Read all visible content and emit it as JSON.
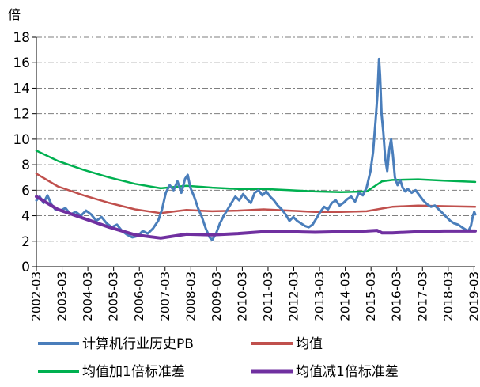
{
  "chart_data": {
    "type": "line",
    "y_unit_label": "倍",
    "ylim": [
      0,
      18
    ],
    "y_ticks": [
      0,
      2,
      4,
      6,
      8,
      10,
      12,
      14,
      16,
      18
    ],
    "x_tick_labels": [
      "2002-03",
      "2003-03",
      "2004-03",
      "2005-03",
      "2006-03",
      "2007-03",
      "2008-03",
      "2009-03",
      "2010-03",
      "2011-03",
      "2012-03",
      "2013-03",
      "2014-03",
      "2015-03",
      "2016-03",
      "2017-03",
      "2018-03",
      "2019-03"
    ],
    "grid": true,
    "legend_position": "bottom",
    "series": [
      {
        "name": "计算机行业历史PB",
        "color": "#4a7ebb",
        "points": [
          [
            2002.17,
            5.2
          ],
          [
            2002.3,
            5.5
          ],
          [
            2002.45,
            5.0
          ],
          [
            2002.6,
            5.6
          ],
          [
            2002.75,
            4.9
          ],
          [
            2002.9,
            4.5
          ],
          [
            2003.1,
            4.4
          ],
          [
            2003.3,
            4.6
          ],
          [
            2003.5,
            4.1
          ],
          [
            2003.7,
            4.3
          ],
          [
            2003.9,
            4.0
          ],
          [
            2004.1,
            4.4
          ],
          [
            2004.3,
            4.1
          ],
          [
            2004.5,
            3.6
          ],
          [
            2004.7,
            3.9
          ],
          [
            2004.9,
            3.4
          ],
          [
            2005.1,
            3.1
          ],
          [
            2005.3,
            3.3
          ],
          [
            2005.5,
            2.8
          ],
          [
            2005.7,
            2.5
          ],
          [
            2005.9,
            2.3
          ],
          [
            2006.1,
            2.4
          ],
          [
            2006.3,
            2.8
          ],
          [
            2006.5,
            2.6
          ],
          [
            2006.7,
            3.0
          ],
          [
            2006.9,
            3.6
          ],
          [
            2007.05,
            4.5
          ],
          [
            2007.2,
            5.8
          ],
          [
            2007.35,
            6.4
          ],
          [
            2007.5,
            6.0
          ],
          [
            2007.65,
            6.7
          ],
          [
            2007.8,
            5.8
          ],
          [
            2007.95,
            6.9
          ],
          [
            2008.05,
            7.2
          ],
          [
            2008.15,
            6.2
          ],
          [
            2008.3,
            5.5
          ],
          [
            2008.45,
            4.6
          ],
          [
            2008.6,
            3.9
          ],
          [
            2008.75,
            3.0
          ],
          [
            2008.9,
            2.3
          ],
          [
            2009.0,
            2.1
          ],
          [
            2009.15,
            2.6
          ],
          [
            2009.3,
            3.4
          ],
          [
            2009.45,
            4.0
          ],
          [
            2009.6,
            4.5
          ],
          [
            2009.75,
            5.0
          ],
          [
            2009.9,
            5.5
          ],
          [
            2010.05,
            5.2
          ],
          [
            2010.2,
            5.7
          ],
          [
            2010.35,
            5.3
          ],
          [
            2010.5,
            5.0
          ],
          [
            2010.65,
            5.8
          ],
          [
            2010.8,
            6.0
          ],
          [
            2010.95,
            5.6
          ],
          [
            2011.1,
            5.9
          ],
          [
            2011.25,
            5.5
          ],
          [
            2011.4,
            5.2
          ],
          [
            2011.55,
            4.8
          ],
          [
            2011.7,
            4.5
          ],
          [
            2011.85,
            4.1
          ],
          [
            2012.0,
            3.6
          ],
          [
            2012.15,
            3.9
          ],
          [
            2012.3,
            3.6
          ],
          [
            2012.45,
            3.4
          ],
          [
            2012.6,
            3.2
          ],
          [
            2012.75,
            3.1
          ],
          [
            2012.9,
            3.3
          ],
          [
            2013.05,
            3.8
          ],
          [
            2013.2,
            4.3
          ],
          [
            2013.35,
            4.7
          ],
          [
            2013.5,
            4.5
          ],
          [
            2013.65,
            5.0
          ],
          [
            2013.8,
            5.2
          ],
          [
            2013.95,
            4.8
          ],
          [
            2014.1,
            5.0
          ],
          [
            2014.25,
            5.3
          ],
          [
            2014.4,
            5.5
          ],
          [
            2014.55,
            5.1
          ],
          [
            2014.7,
            5.8
          ],
          [
            2014.85,
            5.6
          ],
          [
            2015.0,
            6.2
          ],
          [
            2015.15,
            7.5
          ],
          [
            2015.25,
            9.0
          ],
          [
            2015.35,
            11.5
          ],
          [
            2015.42,
            13.5
          ],
          [
            2015.48,
            16.3
          ],
          [
            2015.52,
            15.0
          ],
          [
            2015.58,
            12.0
          ],
          [
            2015.65,
            10.5
          ],
          [
            2015.72,
            8.5
          ],
          [
            2015.8,
            7.5
          ],
          [
            2015.88,
            9.2
          ],
          [
            2015.95,
            10.0
          ],
          [
            2016.02,
            8.8
          ],
          [
            2016.1,
            7.0
          ],
          [
            2016.2,
            6.4
          ],
          [
            2016.3,
            6.8
          ],
          [
            2016.4,
            6.2
          ],
          [
            2016.5,
            5.9
          ],
          [
            2016.6,
            6.1
          ],
          [
            2016.75,
            5.8
          ],
          [
            2016.9,
            6.0
          ],
          [
            2017.05,
            5.6
          ],
          [
            2017.2,
            5.2
          ],
          [
            2017.35,
            4.9
          ],
          [
            2017.5,
            4.7
          ],
          [
            2017.65,
            4.8
          ],
          [
            2017.8,
            4.5
          ],
          [
            2017.95,
            4.2
          ],
          [
            2018.1,
            3.9
          ],
          [
            2018.25,
            3.6
          ],
          [
            2018.4,
            3.4
          ],
          [
            2018.55,
            3.3
          ],
          [
            2018.7,
            3.1
          ],
          [
            2018.85,
            2.9
          ],
          [
            2018.95,
            2.8
          ],
          [
            2019.05,
            3.2
          ],
          [
            2019.12,
            3.9
          ],
          [
            2019.18,
            4.3
          ],
          [
            2019.22,
            4.1
          ]
        ]
      },
      {
        "name": "均值",
        "color": "#c0504d",
        "points": [
          [
            2002.17,
            7.3
          ],
          [
            2003.0,
            6.3
          ],
          [
            2004.0,
            5.6
          ],
          [
            2005.0,
            5.0
          ],
          [
            2006.0,
            4.5
          ],
          [
            2007.0,
            4.2
          ],
          [
            2008.0,
            4.45
          ],
          [
            2009.0,
            4.35
          ],
          [
            2010.0,
            4.4
          ],
          [
            2011.0,
            4.5
          ],
          [
            2012.0,
            4.4
          ],
          [
            2013.0,
            4.3
          ],
          [
            2014.0,
            4.3
          ],
          [
            2015.0,
            4.35
          ],
          [
            2015.7,
            4.6
          ],
          [
            2016.0,
            4.7
          ],
          [
            2017.0,
            4.8
          ],
          [
            2018.0,
            4.75
          ],
          [
            2019.22,
            4.7
          ]
        ]
      },
      {
        "name": "均值加1倍标准差",
        "color": "#00b050",
        "points": [
          [
            2002.17,
            9.1
          ],
          [
            2003.0,
            8.3
          ],
          [
            2004.0,
            7.6
          ],
          [
            2005.0,
            7.0
          ],
          [
            2006.0,
            6.5
          ],
          [
            2007.0,
            6.15
          ],
          [
            2008.0,
            6.35
          ],
          [
            2009.0,
            6.2
          ],
          [
            2010.0,
            6.1
          ],
          [
            2011.0,
            6.1
          ],
          [
            2012.0,
            6.0
          ],
          [
            2013.0,
            5.9
          ],
          [
            2014.0,
            5.85
          ],
          [
            2015.0,
            5.9
          ],
          [
            2015.3,
            6.3
          ],
          [
            2015.6,
            6.7
          ],
          [
            2016.0,
            6.8
          ],
          [
            2017.0,
            6.85
          ],
          [
            2018.0,
            6.75
          ],
          [
            2019.22,
            6.65
          ]
        ]
      },
      {
        "name": "均值减1倍标准差",
        "color": "#7030a0",
        "points": [
          [
            2002.17,
            5.5
          ],
          [
            2003.0,
            4.5
          ],
          [
            2004.0,
            3.8
          ],
          [
            2005.0,
            3.1
          ],
          [
            2006.0,
            2.5
          ],
          [
            2007.0,
            2.25
          ],
          [
            2008.0,
            2.55
          ],
          [
            2009.0,
            2.5
          ],
          [
            2010.0,
            2.6
          ],
          [
            2011.0,
            2.75
          ],
          [
            2012.0,
            2.75
          ],
          [
            2013.0,
            2.7
          ],
          [
            2014.0,
            2.75
          ],
          [
            2015.0,
            2.8
          ],
          [
            2015.4,
            2.85
          ],
          [
            2015.6,
            2.65
          ],
          [
            2016.0,
            2.65
          ],
          [
            2017.0,
            2.75
          ],
          [
            2018.0,
            2.8
          ],
          [
            2019.22,
            2.8
          ]
        ]
      }
    ]
  }
}
